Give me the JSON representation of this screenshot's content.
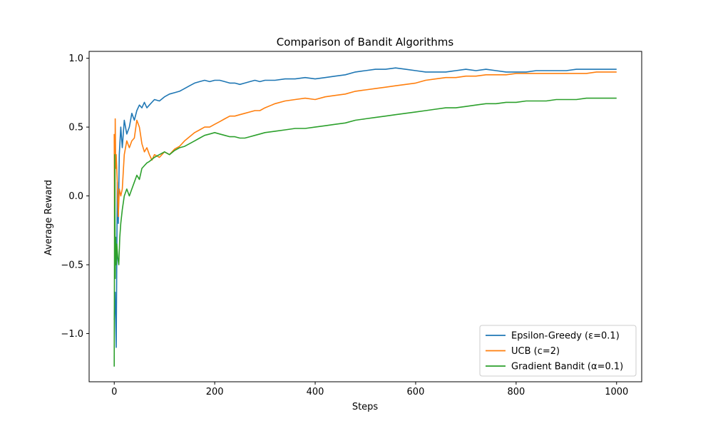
{
  "chart_data": {
    "type": "line",
    "title": "Comparison of Bandit Algorithms",
    "xlabel": "Steps",
    "ylabel": "Average Reward",
    "xlim": [
      -50,
      1050
    ],
    "ylim": [
      -1.35,
      1.05
    ],
    "xticks": [
      0,
      200,
      400,
      600,
      800,
      1000
    ],
    "xtick_labels": [
      "0",
      "200",
      "400",
      "600",
      "800",
      "1000"
    ],
    "yticks": [
      -1.0,
      -0.5,
      0.0,
      0.5,
      1.0
    ],
    "ytick_labels": [
      "−1.0",
      "−0.5",
      "0.0",
      "0.5",
      "1.0"
    ],
    "grid": false,
    "legend_position": "lower-right",
    "series": [
      {
        "name": "Epsilon-Greedy (ε=0.1)",
        "color": "#1f77b4",
        "x": [
          0,
          2,
          4,
          6,
          8,
          10,
          13,
          16,
          20,
          25,
          30,
          35,
          40,
          45,
          50,
          55,
          60,
          65,
          70,
          80,
          90,
          100,
          110,
          120,
          130,
          140,
          150,
          160,
          170,
          180,
          190,
          200,
          210,
          220,
          230,
          240,
          250,
          260,
          270,
          280,
          290,
          300,
          320,
          340,
          360,
          380,
          400,
          420,
          440,
          460,
          480,
          500,
          520,
          540,
          560,
          580,
          600,
          620,
          640,
          660,
          680,
          700,
          720,
          740,
          760,
          780,
          800,
          820,
          840,
          860,
          880,
          900,
          920,
          940,
          960,
          980,
          1000
        ],
        "values": [
          -0.9,
          -0.7,
          -1.1,
          0.1,
          -0.2,
          0.3,
          0.5,
          0.35,
          0.55,
          0.45,
          0.5,
          0.6,
          0.55,
          0.62,
          0.66,
          0.64,
          0.68,
          0.64,
          0.66,
          0.7,
          0.69,
          0.72,
          0.74,
          0.75,
          0.76,
          0.78,
          0.8,
          0.82,
          0.83,
          0.84,
          0.83,
          0.84,
          0.84,
          0.83,
          0.82,
          0.82,
          0.81,
          0.82,
          0.83,
          0.84,
          0.83,
          0.84,
          0.84,
          0.85,
          0.85,
          0.86,
          0.85,
          0.86,
          0.87,
          0.88,
          0.9,
          0.91,
          0.92,
          0.92,
          0.93,
          0.92,
          0.91,
          0.9,
          0.9,
          0.9,
          0.91,
          0.92,
          0.91,
          0.92,
          0.91,
          0.9,
          0.9,
          0.9,
          0.91,
          0.91,
          0.91,
          0.91,
          0.92,
          0.92,
          0.92,
          0.92,
          0.92
        ]
      },
      {
        "name": "UCB (c=2)",
        "color": "#ff7f0e",
        "x": [
          0,
          1,
          2,
          3,
          4,
          6,
          8,
          10,
          13,
          16,
          20,
          25,
          30,
          35,
          40,
          45,
          50,
          55,
          60,
          65,
          70,
          75,
          80,
          90,
          100,
          110,
          120,
          130,
          140,
          150,
          160,
          170,
          180,
          190,
          200,
          210,
          220,
          230,
          240,
          250,
          260,
          270,
          280,
          290,
          300,
          320,
          340,
          360,
          380,
          400,
          420,
          440,
          460,
          480,
          500,
          520,
          540,
          560,
          580,
          600,
          620,
          640,
          660,
          680,
          700,
          720,
          740,
          760,
          780,
          800,
          820,
          840,
          860,
          880,
          900,
          920,
          940,
          960,
          980,
          1000
        ],
        "values": [
          0.45,
          -0.6,
          0.56,
          0.2,
          0.3,
          0.1,
          -0.15,
          0.05,
          0.0,
          0.05,
          0.3,
          0.4,
          0.35,
          0.4,
          0.42,
          0.55,
          0.5,
          0.38,
          0.32,
          0.35,
          0.3,
          0.26,
          0.3,
          0.28,
          0.32,
          0.3,
          0.34,
          0.36,
          0.4,
          0.43,
          0.46,
          0.48,
          0.5,
          0.5,
          0.52,
          0.54,
          0.56,
          0.58,
          0.58,
          0.59,
          0.6,
          0.61,
          0.62,
          0.62,
          0.64,
          0.67,
          0.69,
          0.7,
          0.71,
          0.7,
          0.72,
          0.73,
          0.74,
          0.76,
          0.77,
          0.78,
          0.79,
          0.8,
          0.81,
          0.82,
          0.84,
          0.85,
          0.86,
          0.86,
          0.87,
          0.87,
          0.88,
          0.88,
          0.88,
          0.89,
          0.89,
          0.89,
          0.89,
          0.89,
          0.89,
          0.89,
          0.89,
          0.9,
          0.9,
          0.9
        ]
      },
      {
        "name": "Gradient Bandit (α=0.1)",
        "color": "#2ca02c",
        "x": [
          0,
          1,
          2,
          3,
          4,
          5,
          7,
          9,
          11,
          13,
          16,
          20,
          25,
          30,
          35,
          40,
          45,
          50,
          55,
          60,
          65,
          70,
          80,
          90,
          100,
          110,
          120,
          130,
          140,
          150,
          160,
          170,
          180,
          190,
          200,
          210,
          220,
          230,
          240,
          250,
          260,
          270,
          280,
          290,
          300,
          320,
          340,
          360,
          380,
          400,
          420,
          440,
          460,
          480,
          500,
          520,
          540,
          560,
          580,
          600,
          620,
          640,
          660,
          680,
          700,
          720,
          740,
          760,
          780,
          800,
          820,
          840,
          860,
          880,
          900,
          920,
          940,
          960,
          980,
          1000
        ],
        "values": [
          -1.24,
          0.3,
          -0.6,
          -0.3,
          -0.5,
          -0.35,
          -0.45,
          -0.5,
          -0.3,
          -0.2,
          -0.1,
          0.0,
          0.05,
          0.0,
          0.05,
          0.1,
          0.15,
          0.12,
          0.2,
          0.22,
          0.24,
          0.25,
          0.28,
          0.3,
          0.32,
          0.3,
          0.33,
          0.35,
          0.36,
          0.38,
          0.4,
          0.42,
          0.44,
          0.45,
          0.46,
          0.45,
          0.44,
          0.43,
          0.43,
          0.42,
          0.42,
          0.43,
          0.44,
          0.45,
          0.46,
          0.47,
          0.48,
          0.49,
          0.49,
          0.5,
          0.51,
          0.52,
          0.53,
          0.55,
          0.56,
          0.57,
          0.58,
          0.59,
          0.6,
          0.61,
          0.62,
          0.63,
          0.64,
          0.64,
          0.65,
          0.66,
          0.67,
          0.67,
          0.68,
          0.68,
          0.69,
          0.69,
          0.69,
          0.7,
          0.7,
          0.7,
          0.71,
          0.71,
          0.71,
          0.71
        ]
      }
    ]
  }
}
